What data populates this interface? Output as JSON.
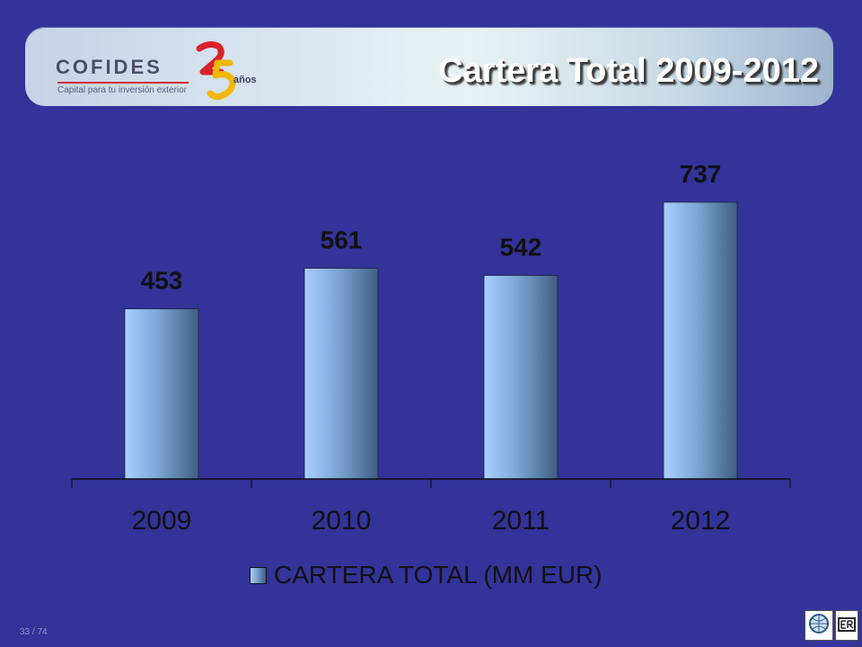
{
  "header": {
    "title": "Cartera Total 2009-2012",
    "logo_word": "COFIDES",
    "logo_tagline": "Capital para tu inversión exterior",
    "logo_anos": "años"
  },
  "footer": {
    "page_number": "33 / 74"
  },
  "colors": {
    "background": "#333399",
    "bar_light": "#a8d0ff",
    "bar_dark": "#3f5e7f",
    "title": "#ffffff"
  },
  "chart_data": {
    "type": "bar",
    "title": "Cartera Total 2009-2012",
    "categories": [
      "2009",
      "2010",
      "2011",
      "2012"
    ],
    "series": [
      {
        "name": "CARTERA TOTAL (MM EUR)",
        "values": [
          453,
          561,
          542,
          737
        ]
      }
    ],
    "data_labels": [
      "453",
      "561",
      "542",
      "737"
    ],
    "legend": "bottom",
    "grid": false
  }
}
